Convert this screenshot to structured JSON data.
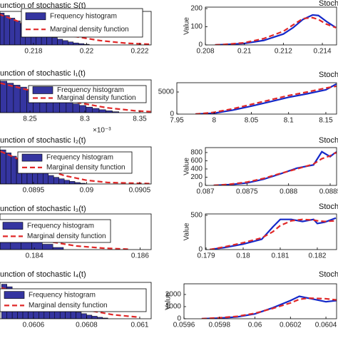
{
  "chart_data": [
    {
      "type": "histogram",
      "title": "unction of stochastic S(t)",
      "xlim": [
        0.21674,
        0.22243
      ],
      "ylim": [
        0,
        100
      ],
      "xticks": [
        0.218,
        0.22,
        0.222
      ],
      "series": [
        {
          "name": "Frequency histogram",
          "color": "#3535a0",
          "bins": [
            0.2167,
            0.2169,
            0.2171,
            0.2173,
            0.2175,
            0.2177,
            0.2179,
            0.2181,
            0.2183,
            0.2185,
            0.2187,
            0.2189,
            0.2191,
            0.2193,
            0.2195,
            0.2197,
            0.2199,
            0.2201
          ],
          "values": [
            95,
            88,
            80,
            72,
            64,
            55,
            47,
            40,
            33,
            27,
            22,
            17,
            13,
            9,
            6,
            4,
            2
          ]
        },
        {
          "name": "Marginal density function",
          "color": "#e02828",
          "x": [
            0.2167,
            0.2175,
            0.2185,
            0.2195,
            0.2205,
            0.2215,
            0.2224
          ],
          "values": [
            92,
            68,
            44,
            26,
            13,
            5,
            2
          ]
        }
      ]
    },
    {
      "type": "histogram",
      "title": "unction of stochastic I₁(t)",
      "x_scale_label": "×10⁻³",
      "xlim": [
        8.2227,
        8.3604
      ],
      "ylim": [
        0,
        100
      ],
      "xticks": [
        8.25,
        8.3,
        8.35
      ],
      "series": [
        {
          "name": "Frequency histogram",
          "color": "#3535a0",
          "bins": [
            8.223,
            8.229,
            8.235,
            8.241,
            8.247,
            8.253,
            8.259,
            8.265,
            8.271,
            8.277,
            8.283,
            8.289,
            8.295,
            8.301,
            8.307,
            8.313,
            8.319,
            8.325,
            8.331
          ],
          "values": [
            96,
            90,
            84,
            78,
            70,
            63,
            56,
            50,
            44,
            38,
            32,
            27,
            22,
            17,
            13,
            9,
            6,
            3
          ]
        },
        {
          "name": "Marginal density function",
          "color": "#e02828",
          "x": [
            8.223,
            8.245,
            8.27,
            8.295,
            8.32,
            8.345,
            8.36
          ],
          "values": [
            90,
            72,
            50,
            30,
            15,
            6,
            3
          ]
        }
      ]
    },
    {
      "type": "histogram",
      "title": "unction of stochastic I₂(t)",
      "xlim": [
        0.089185,
        0.090608
      ],
      "ylim": [
        0,
        100
      ],
      "xticks": [
        0.0895,
        0.09,
        0.0905
      ],
      "series": [
        {
          "name": "Frequency histogram",
          "color": "#3535a0",
          "bins": [
            0.08919,
            0.08924,
            0.08929,
            0.08934,
            0.08939,
            0.08944,
            0.08949,
            0.08954,
            0.08959,
            0.08964,
            0.08969,
            0.08974,
            0.08979,
            0.08984,
            0.08989,
            0.08994,
            0.08999
          ],
          "values": [
            92,
            84,
            75,
            66,
            58,
            50,
            42,
            35,
            29,
            23,
            18,
            14,
            10,
            7,
            4,
            2
          ]
        },
        {
          "name": "Marginal density function",
          "color": "#e02828",
          "x": [
            0.08919,
            0.0894,
            0.0896,
            0.0898,
            0.09,
            0.0902,
            0.0906
          ],
          "values": [
            88,
            62,
            40,
            22,
            10,
            4,
            1
          ]
        }
      ]
    },
    {
      "type": "histogram",
      "title": "unction of stochastic I₃(t)",
      "xlim": [
        0.18335,
        0.18621
      ],
      "ylim": [
        0,
        100
      ],
      "xticks": [
        0.184,
        0.186
      ],
      "series": [
        {
          "name": "Frequency histogram",
          "color": "#3535a0",
          "bins": [
            0.18335,
            0.18355,
            0.18375,
            0.18395,
            0.18415,
            0.18435,
            0.18455
          ],
          "values": [
            70,
            55,
            40,
            27,
            15,
            6
          ]
        },
        {
          "name": "Marginal density function",
          "color": "#e02828",
          "x": [
            0.18335,
            0.1838,
            0.1843,
            0.1848,
            0.1853,
            0.1858
          ],
          "values": [
            62,
            42,
            22,
            10,
            4,
            1
          ]
        }
      ]
    },
    {
      "type": "histogram",
      "title": "unction of stochastic I₄(t)",
      "xlim": [
        0.060474,
        0.061043
      ],
      "ylim": [
        0,
        100
      ],
      "xticks": [
        0.0606,
        0.0608,
        0.061
      ],
      "series": [
        {
          "name": "Frequency histogram",
          "color": "#3535a0",
          "bins": [
            0.06048,
            0.0605,
            0.06052,
            0.06054,
            0.06056,
            0.06058,
            0.0606,
            0.06062,
            0.06064,
            0.06066,
            0.06068,
            0.0607,
            0.06072,
            0.06074,
            0.06076,
            0.06078,
            0.0608,
            0.06082,
            0.06084,
            0.06086,
            0.06088
          ],
          "values": [
            95,
            88,
            82,
            76,
            70,
            64,
            58,
            52,
            46,
            41,
            36,
            31,
            26,
            22,
            18,
            14,
            10,
            7,
            4,
            2
          ]
        },
        {
          "name": "Marginal density function",
          "color": "#e02828",
          "x": [
            0.06048,
            0.0606,
            0.0607,
            0.0608,
            0.0609,
            0.061
          ],
          "values": [
            85,
            62,
            42,
            24,
            11,
            4
          ]
        }
      ]
    },
    {
      "type": "line",
      "title": "Stoch",
      "ylabel": "Value",
      "xlim": [
        0.208,
        0.21473
      ],
      "ylim": [
        0,
        208
      ],
      "xticks": [
        0.208,
        0.21,
        0.212,
        0.214
      ],
      "yticks": [
        0,
        100,
        200
      ],
      "x": [
        0.2085,
        0.209,
        0.21,
        0.211,
        0.212,
        0.2125,
        0.213,
        0.2135,
        0.2138,
        0.2142,
        0.2147
      ],
      "series": [
        {
          "color": "#1428c8",
          "values": [
            0,
            2,
            8,
            25,
            60,
            95,
            140,
            165,
            162,
            130,
            95
          ]
        },
        {
          "color": "#e02828",
          "values": [
            0,
            3,
            12,
            35,
            75,
            110,
            145,
            150,
            140,
            115,
            95
          ]
        }
      ]
    },
    {
      "type": "line",
      "title": "Stoch",
      "xlim": [
        7.95,
        8.1644
      ],
      "ylim": [
        0,
        7100
      ],
      "xticks": [
        7.95,
        8,
        8.05,
        8.1,
        8.15
      ],
      "yticks": [
        0,
        5000
      ],
      "x": [
        7.975,
        8,
        8.025,
        8.05,
        8.075,
        8.1,
        8.125,
        8.15,
        8.164
      ],
      "series": [
        {
          "color": "#1428c8",
          "values": [
            0,
            200,
            900,
            1800,
            2800,
            3800,
            4600,
            5500,
            6800
          ]
        },
        {
          "color": "#e02828",
          "values": [
            0,
            400,
            1200,
            2200,
            3200,
            4200,
            5000,
            5900,
            6300
          ]
        }
      ]
    },
    {
      "type": "line",
      "title": "Stoch",
      "ylabel": "Value",
      "xlim": [
        0.087,
        0.088577
      ],
      "ylim": [
        0,
        920
      ],
      "xticks": [
        0.087,
        0.0875,
        0.088,
        0.0885
      ],
      "yticks": [
        0,
        200,
        400,
        600,
        800
      ],
      "x": [
        0.0871,
        0.0873,
        0.0875,
        0.0877,
        0.0879,
        0.0881,
        0.0883,
        0.0884,
        0.0885,
        0.08855,
        0.0886
      ],
      "series": [
        {
          "color": "#1428c8",
          "values": [
            0,
            20,
            60,
            150,
            280,
            420,
            500,
            820,
            700,
            780,
            840
          ]
        },
        {
          "color": "#e02828",
          "values": [
            0,
            30,
            80,
            170,
            290,
            400,
            520,
            650,
            720,
            780,
            810
          ]
        }
      ]
    },
    {
      "type": "line",
      "title": "Stoch",
      "ylabel": "Value",
      "xlim": [
        0.17898,
        0.18252
      ],
      "ylim": [
        0,
        520
      ],
      "xticks": [
        0.179,
        0.18,
        0.181,
        0.182
      ],
      "yticks": [
        0,
        500
      ],
      "x": [
        0.1791,
        0.1795,
        0.18,
        0.1805,
        0.1808,
        0.181,
        0.1813,
        0.1816,
        0.1819,
        0.182,
        0.1822,
        0.1825
      ],
      "series": [
        {
          "color": "#1428c8",
          "values": [
            0,
            30,
            80,
            150,
            330,
            440,
            440,
            410,
            440,
            380,
            400,
            460
          ]
        },
        {
          "color": "#e02828",
          "values": [
            0,
            40,
            100,
            170,
            260,
            350,
            420,
            440,
            430,
            420,
            410,
            420
          ]
        }
      ]
    },
    {
      "type": "line",
      "title": "Stoch",
      "ylabel": "Value",
      "xlim": [
        0.0596,
        0.06046
      ],
      "ylim": [
        0,
        2880
      ],
      "xticks": [
        0.0596,
        0.0598,
        0.06,
        0.0602,
        0.0604
      ],
      "yticks": [
        0,
        1000,
        2000
      ],
      "x": [
        0.0597,
        0.0598,
        0.0599,
        0.06,
        0.0601,
        0.0602,
        0.06025,
        0.0603,
        0.0604,
        0.06046
      ],
      "series": [
        {
          "color": "#1428c8",
          "values": [
            0,
            50,
            150,
            400,
            900,
            1500,
            1850,
            1700,
            1400,
            1500
          ]
        },
        {
          "color": "#e02828",
          "values": [
            0,
            80,
            200,
            450,
            850,
            1300,
            1600,
            1700,
            1650,
            1550
          ]
        }
      ]
    }
  ]
}
